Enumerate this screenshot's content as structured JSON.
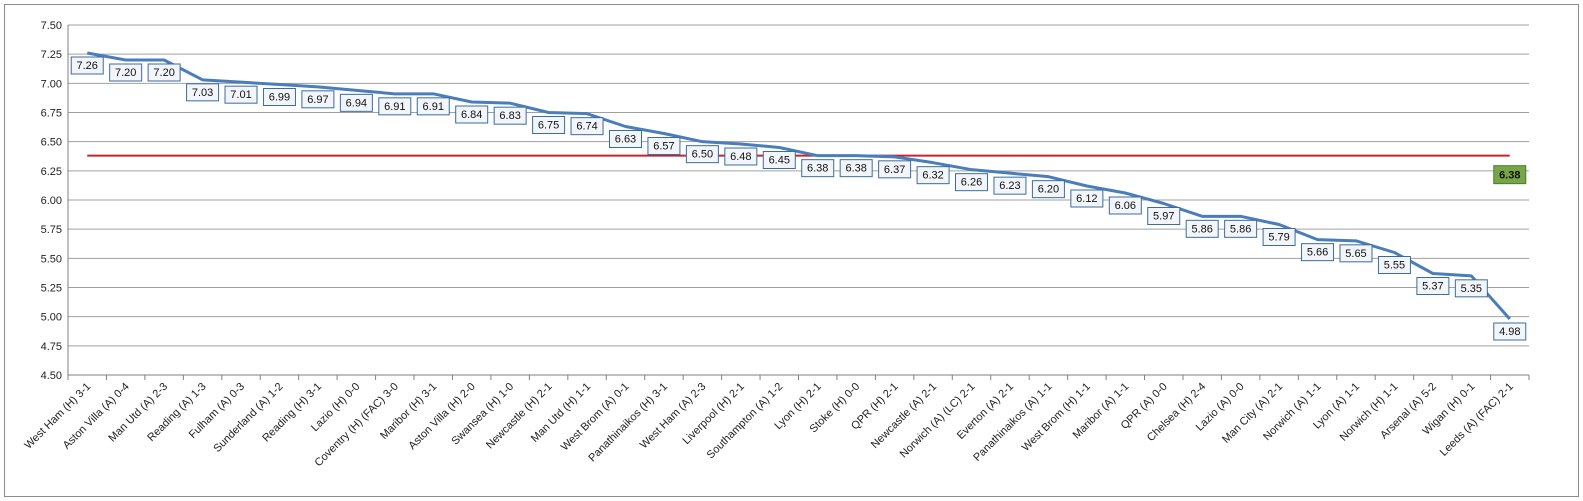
{
  "chart_data": {
    "type": "line",
    "title": "",
    "xlabel": "",
    "ylabel": "",
    "ylim": [
      4.5,
      7.5
    ],
    "ytick_step": 0.25,
    "grid": true,
    "legend": "none",
    "categories": [
      "West Ham (H) 3-1",
      "Aston Villa (A) 0-4",
      "Man Utd (A) 2-3",
      "Reading (A) 1-3",
      "Fulham (A) 0-3",
      "Sunderland (A) 1-2",
      "Reading (H) 3-1",
      "Lazio (H) 0-0",
      "Coventry (H) (FAC) 3-0",
      "Maribor (H) 3-1",
      "Aston Villa (H) 2-0",
      "Swansea (H) 1-0",
      "Newcastle (H) 2-1",
      "Man Utd (H) 1-1",
      "West Brom (A) 0-1",
      "Panathinaikos (H) 3-1",
      "West Ham (A) 2-3",
      "Liverpool (H) 2-1",
      "Southampton (A) 1-2",
      "Lyon (H) 2-1",
      "Stoke (H) 0-0",
      "QPR (H) 2-1",
      "Newcastle (A) 2-1",
      "Norwich (A) (LC) 2-1",
      "Everton (A) 2-1",
      "Panathinaikos (A) 1-1",
      "West Brom (H) 1-1",
      "Maribor (A) 1-1",
      "QPR (A) 0-0",
      "Chelsea (H) 2-4",
      "Lazio (A) 0-0",
      "Man City (A) 2-1",
      "Norwich (A) 1-1",
      "Lyon (A) 1-1",
      "Norwich (H) 1-1",
      "Arsenal (A) 5-2",
      "Wigan (H) 0-1",
      "Leeds (A) (FAC) 2-1"
    ],
    "series": [
      {
        "values": [
          7.26,
          7.2,
          7.2,
          7.03,
          7.01,
          6.99,
          6.97,
          6.94,
          6.91,
          6.91,
          6.84,
          6.83,
          6.75,
          6.74,
          6.63,
          6.57,
          6.5,
          6.48,
          6.45,
          6.38,
          6.38,
          6.37,
          6.32,
          6.26,
          6.23,
          6.2,
          6.12,
          6.06,
          5.97,
          5.86,
          5.86,
          5.79,
          5.66,
          5.65,
          5.55,
          5.37,
          5.35,
          4.98
        ],
        "labels": [
          "7.26",
          "7.20",
          "7.20",
          "7.03",
          "7.01",
          "6.99",
          "6.97",
          "6.94",
          "6.91",
          "6.91",
          "6.84",
          "6.83",
          "6.75",
          "6.74",
          "6.63",
          "6.57",
          "6.50",
          "6.48",
          "6.45",
          "6.38",
          "6.38",
          "6.37",
          "6.32",
          "6.26",
          "6.23",
          "6.20",
          "6.12",
          "6.06",
          "5.97",
          "5.86",
          "5.86",
          "5.79",
          "5.66",
          "5.65",
          "5.55",
          "5.37",
          "5.35",
          "4.98"
        ],
        "color": "#4a7ebb"
      }
    ],
    "average": {
      "value": 6.38,
      "label": "6.38",
      "color": "#c0262d",
      "label_fill": "#77a648"
    },
    "label_fill": "#f2f6fa",
    "label_border": "#3c6c9c",
    "grid_color": "#a0a0a0",
    "yticks": [
      "4.50",
      "4.75",
      "5.00",
      "5.25",
      "5.50",
      "5.75",
      "6.00",
      "6.25",
      "6.50",
      "6.75",
      "7.00",
      "7.25",
      "7.50"
    ]
  }
}
